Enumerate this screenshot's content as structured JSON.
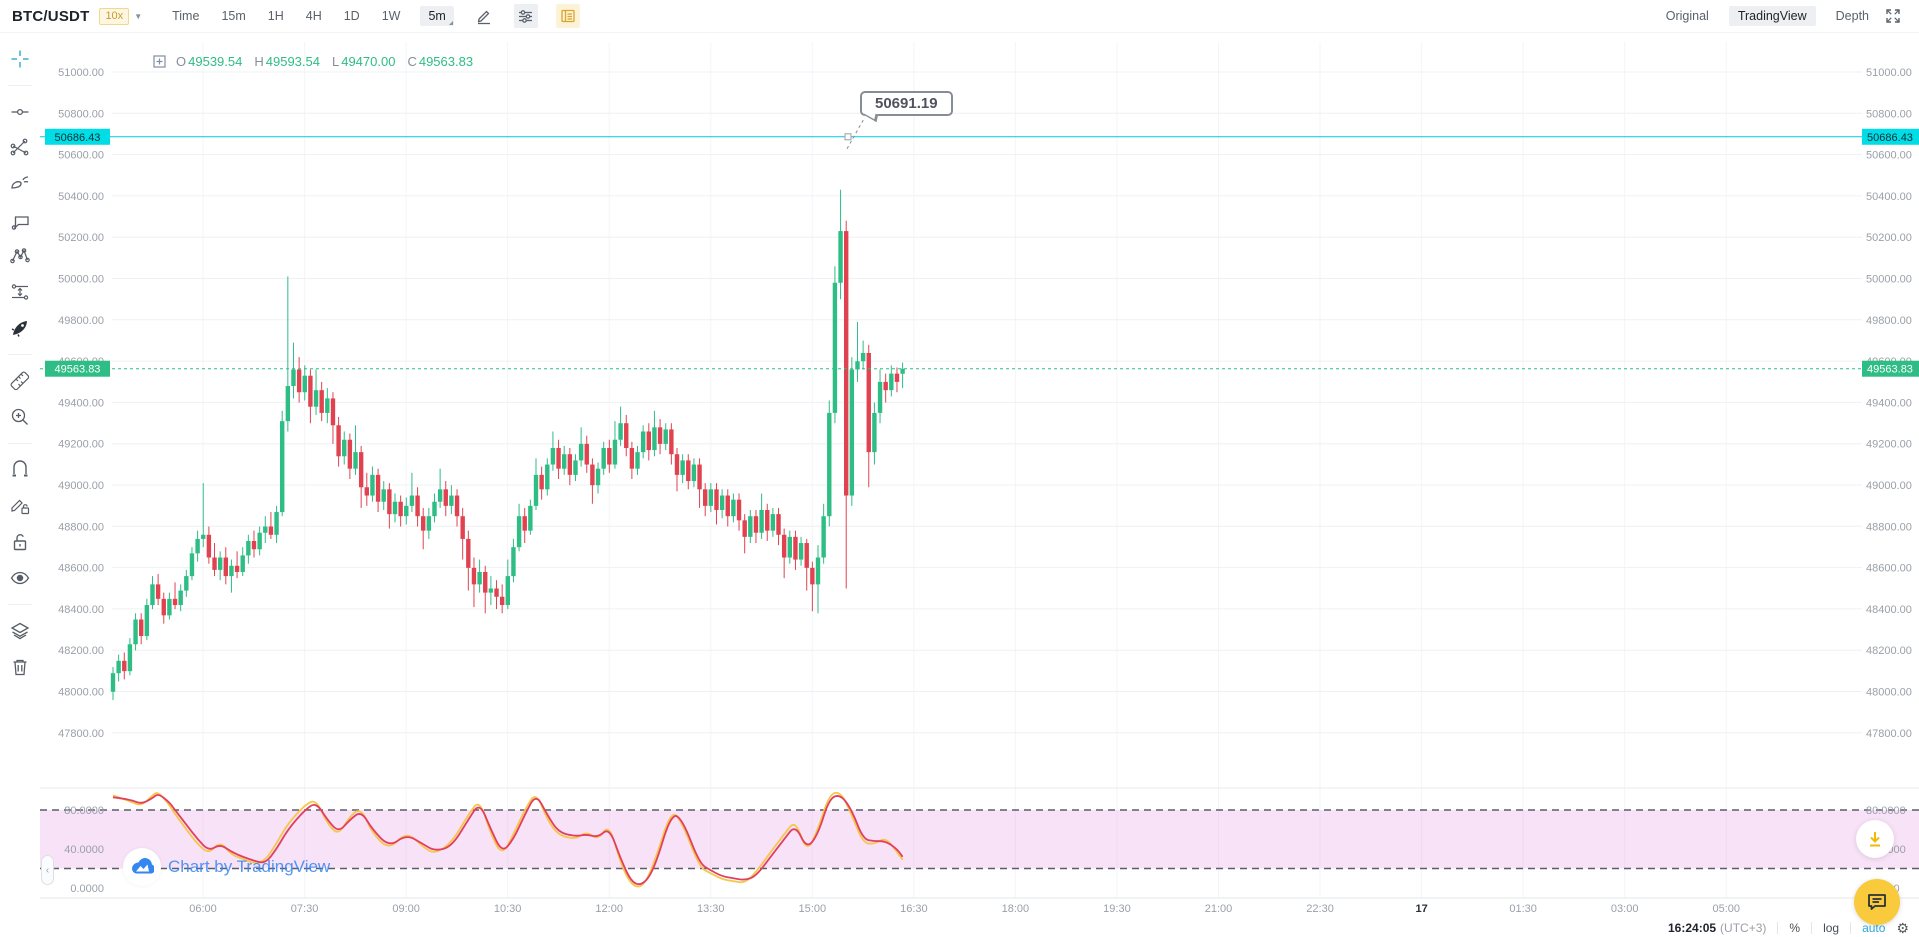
{
  "topbar": {
    "symbol": "BTC/USDT",
    "leverage": "10x",
    "intervals": [
      "Time",
      "15m",
      "1H",
      "4H",
      "1D",
      "1W"
    ],
    "selected_interval": "5m",
    "right_tabs": [
      "Original",
      "TradingView",
      "Depth"
    ],
    "selected_tab": "TradingView"
  },
  "ohlc": {
    "o_label": "O",
    "o": "49539.54",
    "h_label": "H",
    "h": "49593.54",
    "l_label": "L",
    "l": "49470.00",
    "c_label": "C",
    "c": "49563.83"
  },
  "alert_line": {
    "price_label": "50686.43",
    "tooltip": "50691.19"
  },
  "last_price": {
    "label": "49563.83"
  },
  "price_axis": {
    "labels": [
      "51000.00",
      "50800.00",
      "50600.00",
      "50400.00",
      "50200.00",
      "50000.00",
      "49800.00",
      "49600.00",
      "49400.00",
      "49200.00",
      "49000.00",
      "48800.00",
      "48600.00",
      "48400.00",
      "48200.00",
      "48000.00",
      "47800.00"
    ]
  },
  "time_axis": {
    "labels": [
      "06:00",
      "07:30",
      "09:00",
      "10:30",
      "12:00",
      "13:30",
      "15:00",
      "16:30",
      "18:00",
      "19:30",
      "21:00",
      "22:30",
      "17",
      "01:30",
      "03:00",
      "05:00"
    ],
    "bold_label": "17"
  },
  "indicator": {
    "axis_labels": [
      "80.0000",
      "40.0000",
      "0.0000"
    ],
    "band": [
      20,
      80
    ],
    "d_color": "#e23f5f",
    "k_color": "#f3c84b",
    "band_fill": "rgba(219,112,219,0.20)",
    "band_line_color": "#5a5e68",
    "d_points": [
      [
        0,
        93
      ],
      [
        3,
        91
      ],
      [
        5,
        86
      ],
      [
        7,
        92
      ],
      [
        8,
        97
      ],
      [
        10,
        88
      ],
      [
        11,
        80
      ],
      [
        13,
        65
      ],
      [
        15,
        50
      ],
      [
        17,
        38
      ],
      [
        19,
        45
      ],
      [
        21,
        37
      ],
      [
        23,
        32
      ],
      [
        25,
        28
      ],
      [
        27,
        25
      ],
      [
        29,
        40
      ],
      [
        31,
        60
      ],
      [
        34,
        80
      ],
      [
        36,
        88
      ],
      [
        38,
        70
      ],
      [
        40,
        57
      ],
      [
        42,
        70
      ],
      [
        44,
        79
      ],
      [
        46,
        60
      ],
      [
        49,
        42
      ],
      [
        52,
        55
      ],
      [
        55,
        45
      ],
      [
        57,
        38
      ],
      [
        60,
        42
      ],
      [
        63,
        70
      ],
      [
        65,
        88
      ],
      [
        67,
        60
      ],
      [
        69,
        36
      ],
      [
        71,
        50
      ],
      [
        73,
        75
      ],
      [
        75,
        97
      ],
      [
        77,
        75
      ],
      [
        79,
        57
      ],
      [
        82,
        53
      ],
      [
        84,
        55
      ],
      [
        86,
        52
      ],
      [
        88,
        62
      ],
      [
        90,
        30
      ],
      [
        92,
        5
      ],
      [
        94,
        3
      ],
      [
        96,
        20
      ],
      [
        99,
        77
      ],
      [
        101,
        70
      ],
      [
        104,
        25
      ],
      [
        106,
        18
      ],
      [
        108,
        12
      ],
      [
        110,
        10
      ],
      [
        112,
        8
      ],
      [
        114,
        12
      ],
      [
        117,
        35
      ],
      [
        119,
        50
      ],
      [
        121,
        65
      ],
      [
        123,
        40
      ],
      [
        125,
        55
      ],
      [
        127,
        92
      ],
      [
        129,
        96
      ],
      [
        131,
        80
      ],
      [
        133,
        50
      ],
      [
        135,
        48
      ],
      [
        137,
        48
      ],
      [
        139,
        40
      ],
      [
        140,
        32
      ]
    ],
    "k_points": [
      [
        0,
        95
      ],
      [
        3,
        89
      ],
      [
        5,
        84
      ],
      [
        7,
        95
      ],
      [
        8,
        99
      ],
      [
        10,
        85
      ],
      [
        11,
        76
      ],
      [
        13,
        60
      ],
      [
        15,
        45
      ],
      [
        17,
        35
      ],
      [
        19,
        48
      ],
      [
        21,
        34
      ],
      [
        23,
        30
      ],
      [
        25,
        25
      ],
      [
        27,
        28
      ],
      [
        29,
        46
      ],
      [
        31,
        66
      ],
      [
        34,
        85
      ],
      [
        36,
        91
      ],
      [
        38,
        66
      ],
      [
        40,
        54
      ],
      [
        42,
        74
      ],
      [
        44,
        82
      ],
      [
        46,
        56
      ],
      [
        49,
        39
      ],
      [
        52,
        58
      ],
      [
        55,
        42
      ],
      [
        57,
        35
      ],
      [
        60,
        46
      ],
      [
        63,
        75
      ],
      [
        65,
        91
      ],
      [
        67,
        55
      ],
      [
        69,
        33
      ],
      [
        71,
        55
      ],
      [
        73,
        80
      ],
      [
        75,
        99
      ],
      [
        77,
        70
      ],
      [
        79,
        54
      ],
      [
        82,
        50
      ],
      [
        84,
        58
      ],
      [
        86,
        49
      ],
      [
        88,
        66
      ],
      [
        90,
        25
      ],
      [
        92,
        2
      ],
      [
        94,
        1
      ],
      [
        96,
        26
      ],
      [
        99,
        81
      ],
      [
        101,
        66
      ],
      [
        104,
        21
      ],
      [
        106,
        15
      ],
      [
        108,
        9
      ],
      [
        110,
        7
      ],
      [
        112,
        5
      ],
      [
        114,
        16
      ],
      [
        117,
        40
      ],
      [
        119,
        55
      ],
      [
        121,
        70
      ],
      [
        123,
        36
      ],
      [
        125,
        60
      ],
      [
        127,
        96
      ],
      [
        129,
        99
      ],
      [
        131,
        75
      ],
      [
        133,
        46
      ],
      [
        135,
        45
      ],
      [
        137,
        52
      ],
      [
        139,
        37
      ],
      [
        140,
        29
      ]
    ]
  },
  "watermark": {
    "text": "Chart by TradingView"
  },
  "statusbar": {
    "time": "16:24:05",
    "timezone": "(UTC+3)",
    "percent": "%",
    "log": "log",
    "auto": "auto"
  },
  "chart_data": {
    "type": "candlestick",
    "symbol": "BTC/USDT",
    "interval": "5m",
    "up_color": "#2ebd85",
    "down_color": "#e0434f",
    "alert_price": 50686.43,
    "last_price": 49563.83,
    "price_range_shown": [
      47800,
      51000
    ],
    "candles": [
      [
        48000,
        48120,
        47960,
        48090
      ],
      [
        48090,
        48180,
        48050,
        48150
      ],
      [
        48150,
        48190,
        48060,
        48100
      ],
      [
        48100,
        48260,
        48080,
        48230
      ],
      [
        48230,
        48380,
        48200,
        48350
      ],
      [
        48350,
        48380,
        48230,
        48270
      ],
      [
        48270,
        48450,
        48250,
        48420
      ],
      [
        48420,
        48560,
        48400,
        48520
      ],
      [
        48520,
        48570,
        48420,
        48450
      ],
      [
        48450,
        48480,
        48330,
        48370
      ],
      [
        48370,
        48480,
        48350,
        48450
      ],
      [
        48450,
        48530,
        48400,
        48420
      ],
      [
        48420,
        48520,
        48390,
        48490
      ],
      [
        48490,
        48590,
        48460,
        48560
      ],
      [
        48560,
        48700,
        48540,
        48670
      ],
      [
        48670,
        48780,
        48630,
        48740
      ],
      [
        48740,
        49010,
        48700,
        48760
      ],
      [
        48760,
        48800,
        48620,
        48650
      ],
      [
        48650,
        48720,
        48560,
        48590
      ],
      [
        48590,
        48680,
        48540,
        48650
      ],
      [
        48650,
        48700,
        48520,
        48560
      ],
      [
        48560,
        48640,
        48480,
        48610
      ],
      [
        48610,
        48680,
        48550,
        48580
      ],
      [
        48580,
        48700,
        48560,
        48660
      ],
      [
        48660,
        48760,
        48620,
        48730
      ],
      [
        48730,
        48780,
        48650,
        48690
      ],
      [
        48690,
        48800,
        48660,
        48770
      ],
      [
        48770,
        48850,
        48720,
        48800
      ],
      [
        48800,
        48870,
        48740,
        48760
      ],
      [
        48760,
        48900,
        48720,
        48870
      ],
      [
        48870,
        49360,
        48850,
        49310
      ],
      [
        49310,
        50010,
        49260,
        49480
      ],
      [
        49480,
        49690,
        49420,
        49560
      ],
      [
        49560,
        49620,
        49400,
        49450
      ],
      [
        49450,
        49580,
        49410,
        49530
      ],
      [
        49530,
        49560,
        49300,
        49380
      ],
      [
        49380,
        49560,
        49340,
        49460
      ],
      [
        49460,
        49500,
        49310,
        49350
      ],
      [
        49350,
        49470,
        49300,
        49420
      ],
      [
        49420,
        49450,
        49200,
        49290
      ],
      [
        49290,
        49330,
        49090,
        49140
      ],
      [
        49140,
        49260,
        49100,
        49220
      ],
      [
        49220,
        49250,
        49030,
        49080
      ],
      [
        49080,
        49290,
        49050,
        49160
      ],
      [
        49160,
        49190,
        48890,
        48990
      ],
      [
        48990,
        49060,
        48900,
        48950
      ],
      [
        48950,
        49090,
        48920,
        49050
      ],
      [
        49050,
        49080,
        48870,
        48920
      ],
      [
        48920,
        49020,
        48880,
        48980
      ],
      [
        48980,
        49010,
        48790,
        48860
      ],
      [
        48860,
        48960,
        48820,
        48920
      ],
      [
        48920,
        48950,
        48800,
        48850
      ],
      [
        48850,
        48940,
        48810,
        48900
      ],
      [
        48900,
        49060,
        48870,
        48950
      ],
      [
        48950,
        48990,
        48800,
        48850
      ],
      [
        48850,
        48890,
        48690,
        48780
      ],
      [
        48780,
        48890,
        48740,
        48850
      ],
      [
        48850,
        48960,
        48820,
        48920
      ],
      [
        48920,
        49080,
        48890,
        48980
      ],
      [
        48980,
        49020,
        48850,
        48900
      ],
      [
        48900,
        49000,
        48860,
        48950
      ],
      [
        48950,
        48980,
        48800,
        48850
      ],
      [
        48850,
        48890,
        48640,
        48740
      ],
      [
        48740,
        48780,
        48490,
        48600
      ],
      [
        48600,
        48650,
        48410,
        48520
      ],
      [
        48520,
        48640,
        48480,
        48580
      ],
      [
        48580,
        48610,
        48380,
        48480
      ],
      [
        48480,
        48560,
        48420,
        48500
      ],
      [
        48500,
        48540,
        48400,
        48460
      ],
      [
        48460,
        48520,
        48380,
        48420
      ],
      [
        48420,
        48640,
        48400,
        48560
      ],
      [
        48560,
        48740,
        48530,
        48700
      ],
      [
        48700,
        48910,
        48680,
        48850
      ],
      [
        48850,
        48890,
        48720,
        48780
      ],
      [
        48780,
        48930,
        48760,
        48900
      ],
      [
        48900,
        49130,
        48880,
        49050
      ],
      [
        49050,
        49090,
        48930,
        48980
      ],
      [
        48980,
        49130,
        48950,
        49100
      ],
      [
        49100,
        49260,
        49070,
        49180
      ],
      [
        49180,
        49220,
        49030,
        49080
      ],
      [
        49080,
        49190,
        49050,
        49150
      ],
      [
        49150,
        49180,
        49000,
        49050
      ],
      [
        49050,
        49150,
        49020,
        49120
      ],
      [
        49120,
        49280,
        49090,
        49200
      ],
      [
        49200,
        49240,
        49060,
        49100
      ],
      [
        49100,
        49130,
        48910,
        49000
      ],
      [
        49000,
        49110,
        48960,
        49080
      ],
      [
        49080,
        49210,
        49050,
        49180
      ],
      [
        49180,
        49220,
        49060,
        49100
      ],
      [
        49100,
        49310,
        49080,
        49220
      ],
      [
        49220,
        49380,
        49190,
        49300
      ],
      [
        49300,
        49340,
        49140,
        49180
      ],
      [
        49180,
        49210,
        49030,
        49080
      ],
      [
        49080,
        49190,
        49050,
        49160
      ],
      [
        49160,
        49290,
        49130,
        49260
      ],
      [
        49260,
        49300,
        49120,
        49170
      ],
      [
        49170,
        49360,
        49140,
        49280
      ],
      [
        49280,
        49320,
        49150,
        49200
      ],
      [
        49200,
        49300,
        49170,
        49270
      ],
      [
        49270,
        49300,
        49100,
        49150
      ],
      [
        49150,
        49180,
        48970,
        49050
      ],
      [
        49050,
        49150,
        49010,
        49120
      ],
      [
        49120,
        49150,
        48980,
        49020
      ],
      [
        49020,
        49130,
        48990,
        49100
      ],
      [
        49100,
        49130,
        48890,
        48980
      ],
      [
        48980,
        49010,
        48850,
        48900
      ],
      [
        48900,
        49010,
        48870,
        48980
      ],
      [
        48980,
        49010,
        48810,
        48880
      ],
      [
        48880,
        48980,
        48840,
        48950
      ],
      [
        48950,
        48980,
        48800,
        48850
      ],
      [
        48850,
        48960,
        48820,
        48930
      ],
      [
        48930,
        48960,
        48780,
        48830
      ],
      [
        48830,
        48860,
        48670,
        48750
      ],
      [
        48750,
        48880,
        48720,
        48850
      ],
      [
        48850,
        48880,
        48720,
        48770
      ],
      [
        48770,
        48960,
        48740,
        48880
      ],
      [
        48880,
        48910,
        48730,
        48780
      ],
      [
        48780,
        48890,
        48750,
        48860
      ],
      [
        48860,
        48890,
        48710,
        48760
      ],
      [
        48760,
        48790,
        48550,
        48650
      ],
      [
        48650,
        48780,
        48620,
        48750
      ],
      [
        48750,
        48780,
        48590,
        48640
      ],
      [
        48640,
        48750,
        48610,
        48720
      ],
      [
        48720,
        48740,
        48490,
        48600
      ],
      [
        48600,
        48630,
        48390,
        48520
      ],
      [
        48520,
        48710,
        48380,
        48650
      ],
      [
        48650,
        48910,
        48620,
        48850
      ],
      [
        48850,
        49410,
        48800,
        49350
      ],
      [
        49350,
        50060,
        49300,
        49980
      ],
      [
        49980,
        50430,
        49900,
        50230
      ],
      [
        50230,
        50280,
        48500,
        48950
      ],
      [
        48950,
        49620,
        48900,
        49560
      ],
      [
        49560,
        49790,
        49500,
        49600
      ],
      [
        49600,
        49700,
        49560,
        49640
      ],
      [
        49640,
        49680,
        48990,
        49160
      ],
      [
        49160,
        49400,
        49100,
        49350
      ],
      [
        49350,
        49560,
        49300,
        49500
      ],
      [
        49500,
        49540,
        49400,
        49460
      ],
      [
        49460,
        49580,
        49430,
        49540
      ],
      [
        49540,
        49570,
        49450,
        49500
      ],
      [
        49539.54,
        49593.54,
        49470.0,
        49563.83
      ]
    ]
  }
}
